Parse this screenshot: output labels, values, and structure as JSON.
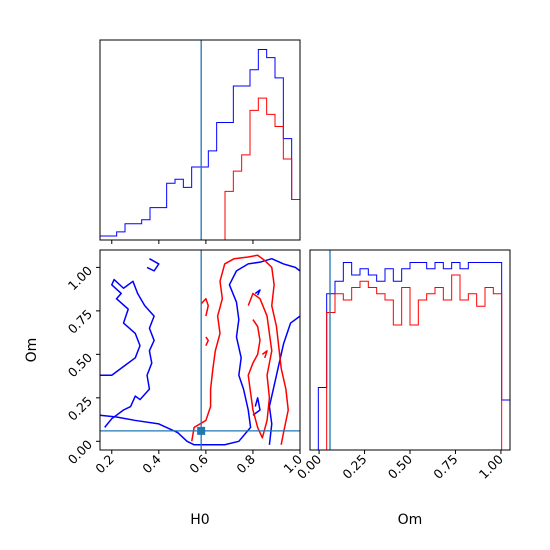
{
  "chart_data": [
    {
      "type": "histogram-step",
      "panel": "H0 marginal",
      "xlim": [
        0.15,
        1.0
      ],
      "bin_edges": [
        0.15,
        0.1854,
        0.2208,
        0.2563,
        0.2917,
        0.3271,
        0.3625,
        0.3979,
        0.4333,
        0.4688,
        0.5042,
        0.5396,
        0.575,
        0.6104,
        0.6458,
        0.6813,
        0.7167,
        0.7521,
        0.7875,
        0.8229,
        0.8583,
        0.8938,
        0.9292,
        0.9646,
        1.0
      ],
      "series": [
        {
          "color": "#0000ff",
          "values": [
            1,
            1,
            2,
            4,
            4,
            5,
            8,
            8,
            14,
            15,
            13,
            18,
            18,
            22,
            29,
            29,
            38,
            38,
            42,
            47,
            45,
            40,
            25,
            10
          ]
        },
        {
          "color": "#ff0000",
          "values": [
            0,
            0,
            0,
            0,
            0,
            0,
            0,
            0,
            0,
            0,
            0,
            0,
            0,
            0,
            0,
            12,
            17,
            21,
            32,
            35,
            31,
            28,
            20,
            10
          ]
        }
      ],
      "truth_line": 0.58,
      "truth_color": "#1f77b4"
    },
    {
      "type": "contour",
      "panel": "Om vs H0",
      "xlabel": "H0",
      "ylabel": "Om",
      "xlim": [
        0.15,
        1.0
      ],
      "ylim": [
        -0.05,
        1.1
      ],
      "x_ticks": [
        "0.2",
        "0.4",
        "0.6",
        "0.8",
        "1.0"
      ],
      "y_ticks": [
        "0.00",
        "0.25",
        "0.50",
        "0.75",
        "1.00"
      ],
      "series": [
        {
          "color": "#0000ff",
          "contours": [
            [
              [
                0.36,
                1.05
              ],
              [
                0.4,
                1.02
              ],
              [
                0.38,
                0.98
              ],
              [
                0.35,
                1.0
              ]
            ],
            [
              [
                0.17,
                0.08
              ],
              [
                0.2,
                0.13
              ],
              [
                0.25,
                0.18
              ],
              [
                0.28,
                0.2
              ],
              [
                0.3,
                0.26
              ],
              [
                0.32,
                0.24
              ],
              [
                0.36,
                0.3
              ],
              [
                0.35,
                0.38
              ],
              [
                0.37,
                0.45
              ],
              [
                0.36,
                0.52
              ],
              [
                0.38,
                0.58
              ],
              [
                0.36,
                0.65
              ],
              [
                0.38,
                0.72
              ],
              [
                0.34,
                0.78
              ],
              [
                0.31,
                0.85
              ],
              [
                0.29,
                0.92
              ],
              [
                0.25,
                0.88
              ],
              [
                0.21,
                0.93
              ],
              [
                0.2,
                0.9
              ],
              [
                0.24,
                0.85
              ],
              [
                0.22,
                0.82
              ],
              [
                0.27,
                0.76
              ],
              [
                0.25,
                0.68
              ],
              [
                0.3,
                0.62
              ],
              [
                0.32,
                0.55
              ],
              [
                0.3,
                0.48
              ],
              [
                0.26,
                0.44
              ],
              [
                0.2,
                0.38
              ],
              [
                0.15,
                0.38
              ]
            ],
            [
              [
                0.15,
                0.15
              ],
              [
                0.22,
                0.14
              ],
              [
                0.3,
                0.12
              ],
              [
                0.4,
                0.1
              ],
              [
                0.48,
                0.05
              ],
              [
                0.52,
                0.0
              ],
              [
                0.55,
                -0.02
              ],
              [
                0.68,
                -0.02
              ],
              [
                0.74,
                0.0
              ],
              [
                0.79,
                0.08
              ],
              [
                0.78,
                0.18
              ],
              [
                0.76,
                0.3
              ],
              [
                0.74,
                0.38
              ],
              [
                0.75,
                0.48
              ],
              [
                0.73,
                0.6
              ],
              [
                0.74,
                0.7
              ],
              [
                0.73,
                0.8
              ],
              [
                0.7,
                0.9
              ],
              [
                0.73,
                0.98
              ],
              [
                0.78,
                1.02
              ],
              [
                0.83,
                1.03
              ],
              [
                0.88,
                1.05
              ],
              [
                0.93,
                1.02
              ],
              [
                0.98,
                1.0
              ],
              [
                1.0,
                0.98
              ]
            ],
            [
              [
                0.81,
                0.85
              ],
              [
                0.83,
                0.87
              ],
              [
                0.82,
                0.84
              ]
            ],
            [
              [
                0.8,
                0.15
              ],
              [
                0.83,
                0.18
              ],
              [
                0.82,
                0.25
              ],
              [
                0.81,
                0.2
              ]
            ],
            [
              [
                0.87,
                -0.02
              ],
              [
                0.88,
                0.1
              ],
              [
                0.87,
                0.2
              ],
              [
                0.89,
                0.32
              ],
              [
                0.91,
                0.44
              ],
              [
                0.93,
                0.56
              ],
              [
                0.96,
                0.68
              ],
              [
                1.0,
                0.72
              ]
            ]
          ]
        },
        {
          "color": "#ff0000",
          "contours": [
            [
              [
                0.6,
                0.72
              ],
              [
                0.61,
                0.78
              ],
              [
                0.6,
                0.82
              ],
              [
                0.58,
                0.79
              ]
            ],
            [
              [
                0.54,
                0.0
              ],
              [
                0.55,
                0.08
              ],
              [
                0.6,
                0.12
              ],
              [
                0.62,
                0.2
              ],
              [
                0.62,
                0.3
              ],
              [
                0.63,
                0.42
              ],
              [
                0.64,
                0.52
              ],
              [
                0.66,
                0.62
              ],
              [
                0.65,
                0.72
              ],
              [
                0.67,
                0.82
              ],
              [
                0.66,
                0.92
              ],
              [
                0.68,
                1.02
              ],
              [
                0.72,
                1.05
              ],
              [
                0.78,
                1.06
              ],
              [
                0.82,
                1.07
              ],
              [
                0.85,
                1.04
              ],
              [
                0.88,
                1.0
              ],
              [
                0.89,
                0.9
              ],
              [
                0.88,
                0.78
              ],
              [
                0.9,
                0.66
              ],
              [
                0.91,
                0.54
              ],
              [
                0.92,
                0.42
              ],
              [
                0.94,
                0.3
              ],
              [
                0.95,
                0.18
              ],
              [
                0.93,
                0.05
              ],
              [
                0.92,
                -0.02
              ]
            ],
            [
              [
                0.8,
                0.7
              ],
              [
                0.82,
                0.66
              ],
              [
                0.83,
                0.58
              ],
              [
                0.82,
                0.5
              ],
              [
                0.8,
                0.45
              ],
              [
                0.78,
                0.38
              ],
              [
                0.79,
                0.28
              ],
              [
                0.8,
                0.18
              ],
              [
                0.82,
                0.08
              ],
              [
                0.84,
                0.02
              ],
              [
                0.86,
                0.12
              ],
              [
                0.87,
                0.25
              ],
              [
                0.86,
                0.38
              ],
              [
                0.88,
                0.52
              ],
              [
                0.87,
                0.62
              ],
              [
                0.86,
                0.72
              ],
              [
                0.83,
                0.82
              ],
              [
                0.8,
                0.85
              ],
              [
                0.78,
                0.78
              ]
            ],
            [
              [
                0.84,
                0.5
              ],
              [
                0.86,
                0.52
              ],
              [
                0.85,
                0.48
              ]
            ],
            [
              [
                0.6,
                0.55
              ],
              [
                0.61,
                0.58
              ],
              [
                0.6,
                0.6
              ]
            ]
          ]
        }
      ],
      "truth_x": 0.58,
      "truth_y": 0.06,
      "truth_color": "#1f77b4"
    },
    {
      "type": "histogram-step",
      "panel": "Om marginal",
      "xlabel": "Om",
      "xlim": [
        -0.05,
        1.05
      ],
      "x_ticks": [
        "0.00",
        "0.25",
        "0.50",
        "0.75",
        "1.00"
      ],
      "bin_edges": [
        -0.05,
        -0.0042,
        0.0417,
        0.0875,
        0.1333,
        0.1792,
        0.225,
        0.2708,
        0.3167,
        0.3625,
        0.4083,
        0.4542,
        0.5,
        0.5458,
        0.5917,
        0.6375,
        0.6833,
        0.7292,
        0.775,
        0.8208,
        0.8667,
        0.9125,
        0.9583,
        1.0042,
        1.05
      ],
      "series": [
        {
          "color": "#0000ff",
          "values": [
            0,
            10,
            25,
            27,
            30,
            28,
            29,
            28,
            27,
            29,
            27,
            29,
            30,
            30,
            29,
            30,
            29,
            30,
            29,
            30,
            30,
            30,
            30,
            8
          ]
        },
        {
          "color": "#ff0000",
          "values": [
            0,
            0,
            22,
            25,
            24,
            26,
            27,
            26,
            25,
            24,
            20,
            26,
            20,
            24,
            25,
            26,
            24,
            28,
            24,
            25,
            23,
            26,
            25,
            0
          ]
        }
      ],
      "ylim": [
        0,
        32
      ],
      "truth_line": 0.06,
      "truth_color": "#1f77b4"
    }
  ]
}
